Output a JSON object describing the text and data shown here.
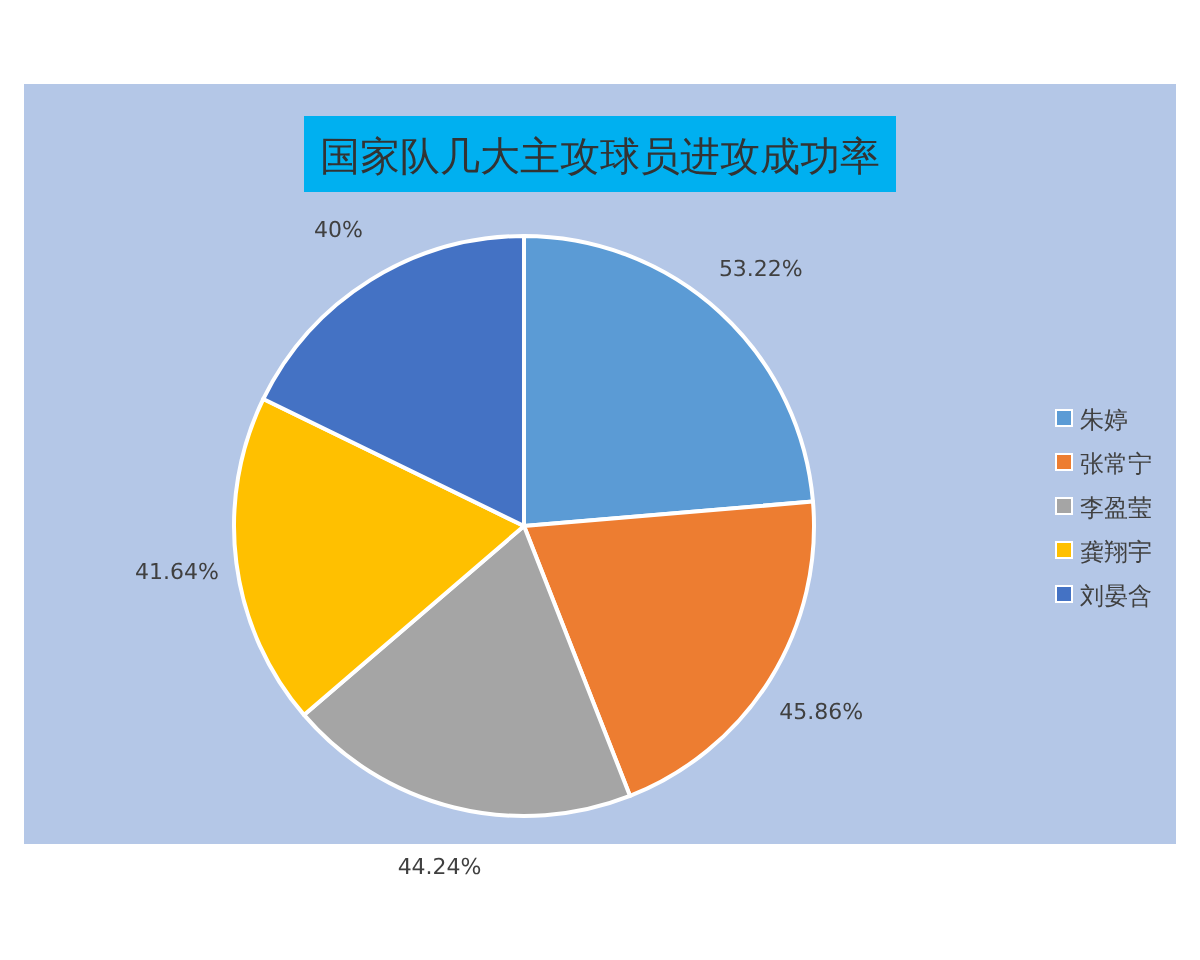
{
  "chart_data": {
    "type": "pie",
    "title": "国家队几大主攻球员进攻成功率",
    "categories": [
      "朱婷",
      "张常宁",
      "李盈莹",
      "龚翔宇",
      "刘晏含"
    ],
    "values": [
      53.22,
      45.86,
      44.24,
      41.64,
      40
    ],
    "value_labels": [
      "53.22%",
      "45.86%",
      "44.24%",
      "41.64%",
      "40%"
    ],
    "colors": [
      "#5b9bd5",
      "#ed7d31",
      "#a5a5a5",
      "#ffc000",
      "#4472c4"
    ],
    "legend": "right"
  }
}
